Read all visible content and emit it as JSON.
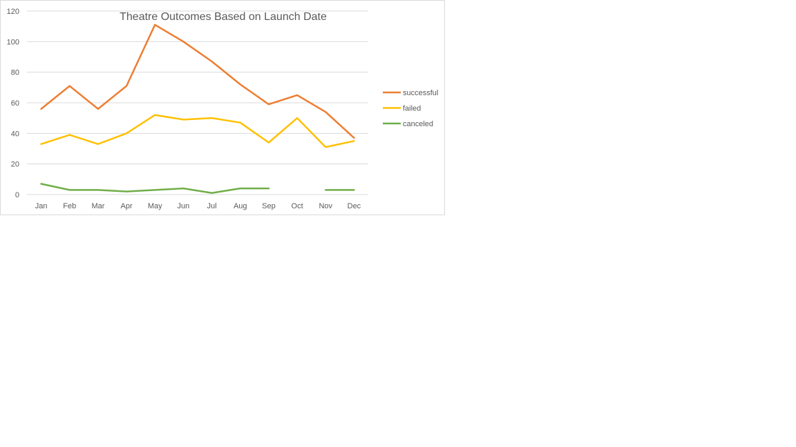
{
  "chart_data": {
    "type": "line",
    "title": "Theatre Outcomes Based on Launch Date",
    "xlabel": "",
    "ylabel": "",
    "categories": [
      "Jan",
      "Feb",
      "Mar",
      "Apr",
      "May",
      "Jun",
      "Jul",
      "Aug",
      "Sep",
      "Oct",
      "Nov",
      "Dec"
    ],
    "ylim": [
      0,
      120
    ],
    "yticks": [
      0,
      20,
      40,
      60,
      80,
      100,
      120
    ],
    "grid": true,
    "legend_position": "right",
    "series": [
      {
        "name": "successful",
        "color": "#ED7D31",
        "values": [
          56,
          71,
          56,
          71,
          111,
          100,
          87,
          72,
          59,
          65,
          54,
          37
        ]
      },
      {
        "name": "failed",
        "color": "#FFC000",
        "values": [
          33,
          39,
          33,
          40,
          52,
          49,
          50,
          47,
          34,
          50,
          31,
          35
        ]
      },
      {
        "name": "canceled",
        "color": "#70AD47",
        "values": [
          7,
          3,
          3,
          2,
          3,
          4,
          1,
          4,
          4,
          null,
          3,
          3
        ]
      }
    ]
  }
}
